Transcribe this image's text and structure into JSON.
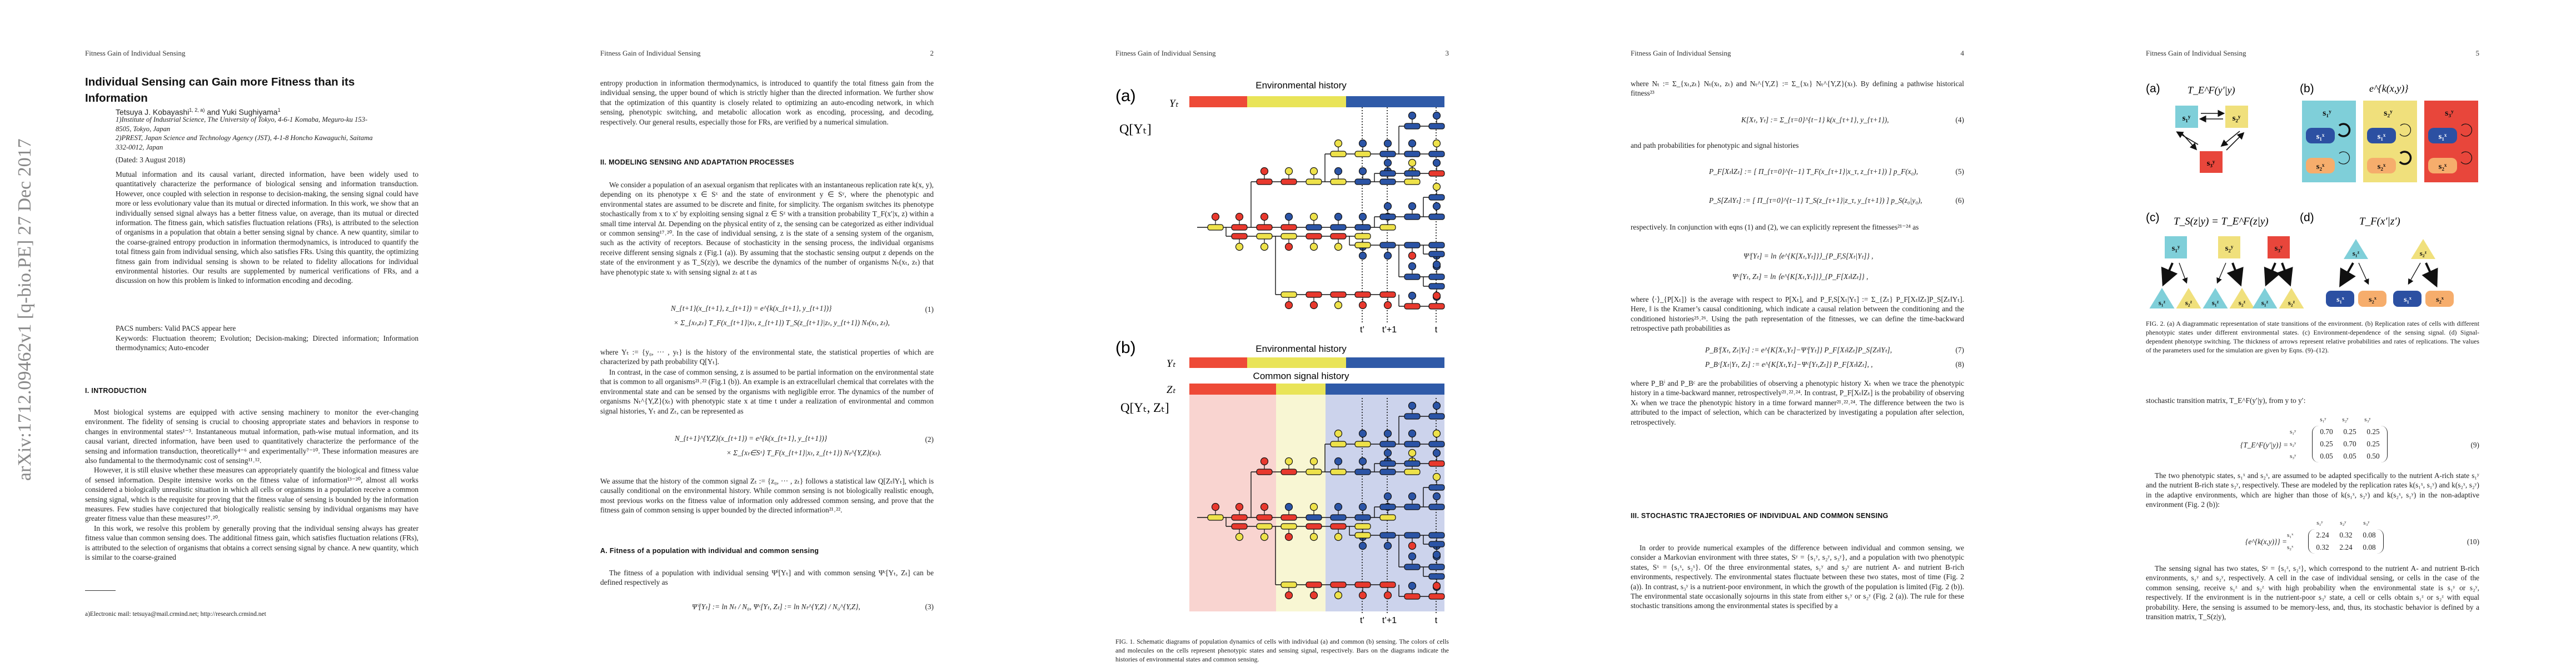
{
  "running_header": "Fitness Gain of Individual Sensing",
  "arxiv_stamp": "arXiv:1712.09462v1  [q-bio.PE]  27 Dec 2017",
  "page1": {
    "title": "Individual Sensing can Gain more Fitness than its Information",
    "author1": "Tetsuya J. Kobayashi",
    "author1_sup": "1, 2, a)",
    "author_and": " and ",
    "author2": "Yuki Sughiyama",
    "author2_sup": "1",
    "affiliations": [
      "1)Institute of Industrial Science, The University of Tokyo, 4-6-1 Komaba, Meguro-ku 153-8505, Tokyo, Japan",
      "2)PREST, Japan Science and Technology Agency (JST), 4-1-8 Honcho Kawaguchi, Saitama 332-0012, Japan"
    ],
    "dated": "(Dated: 3 August 2018)",
    "abstract": "Mutual information and its causal variant, directed information, have been widely used to quantitatively characterize the performance of biological sensing and information transduction. However, once coupled with selection in response to decision-making, the sensing signal could have more or less evolutionary value than its mutual or directed information. In this work, we show that an individually sensed signal always has a better fitness value, on average, than its mutual or directed information. The fitness gain, which satisfies fluctuation relations (FRs), is attributed to the selection of organisms in a population that obtain a better sensing signal by chance. A new quantity, similar to the coarse-grained entropy production in information thermodynamics, is introduced to quantify the total fitness gain from individual sensing, which also satisfies FRs. Using this quantity, the optimizing fitness gain from individual sensing is shown to be related to fidelity allocations for individual environmental histories. Our results are supplemented by numerical verifications of FRs, and a discussion on how this problem is linked to information encoding and decoding.",
    "pacs": "PACS numbers: Valid PACS appear here",
    "keywords": "Keywords: Fluctuation theorem; Evolution; Decision-making; Directed information; Information thermodynamics; Auto-encoder",
    "section1_heading": "I.   INTRODUCTION",
    "paragraphs": [
      "Most biological systems are equipped with active sensing machinery to monitor the ever-changing environment. The fidelity of sensing is crucial to choosing appropriate states and behaviors in response to changes in environmental states¹⁻³. Instantaneous mutual information, path-wise mutual information, and its causal variant, directed information, have been used to quantitatively characterize the performance of the sensing and information transduction, theoretically⁴⁻⁶ and experimentally⁷⁻¹⁰. These information measures are also fundamental to the thermodynamic cost of sensing¹¹˒¹².",
      "However, it is still elusive whether these measures can appropriately quantify the biological and fitness value of sensed information. Despite intensive works on the fitness value of information¹³⁻²⁰, almost all works considered a biologically unrealistic situation in which all cells or organisms in a population receive a common sensing signal, which is the requisite for proving that the fitness value of sensing is bounded by the information measures. Few studies have conjectured that biologically realistic sensing by individual organisms may have greater fitness value than these measures¹⁷˒²⁰.",
      "In this work, we resolve this problem by generally proving that the individual sensing always has greater fitness value than common sensing does. The additional fitness gain, which satisfies fluctuation relations (FRs), is attributed to the selection of organisms that obtains a correct sensing signal by chance. A new quantity, which is similar to the coarse-grained"
    ],
    "footnote": "a)Electronic mail: tetsuya@mail.crmind.net; http://research.crmind.net"
  },
  "page2": {
    "number": "2",
    "p1": "entropy production in information thermodynamics, is introduced to quantify the total fitness gain from the individual sensing, the upper bound of which is strictly higher than the directed information. We further show that the optimization of this quantity is closely related to optimizing an auto-encoding network, in which sensing, phenotypic switching, and metabolic allocation work as encoding, processing, and decoding, respectively. Our general results, especially those for FRs, are verified by a numerical simulation.",
    "section2_heading": "II.   MODELING SENSING AND ADAPTATION PROCESSES",
    "p2": "We consider a population of an asexual organism that replicates with an instantaneous replication rate k(x, y), depending on its phenotype x ∈ Sˣ and the state of environment y ∈ Sʸ, where the phenotypic and environmental states are assumed to be discrete and finite, for simplicity. The organism switches its phenotype stochastically from x to x′ by exploiting sensing signal z ∈ Sᶻ with a transition probability T_F(x′|x, z) within a small time interval Δt. Depending on the physical entity of z, the sensing can be categorized as either individual or common sensing¹⁷˒²⁰. In the case of individual sensing, z is the state of a sensing system of the organism, such as the activity of receptors. Because of stochasticity in the sensing process, the individual organisms receive different sensing signals z (Fig.1 (a)). By assuming that the stochastic sensing output z depends on the state of the environment y as T_S(z|y), we describe the dynamics of the number of organisms Nₜ(xₜ, zₜ) that have phenotypic state xₜ with sensing signal zₜ at t as",
    "eq1_line1": "N_{t+1}(x_{t+1}, z_{t+1}) = e^{k(x_{t+1}, y_{t+1})}",
    "eq1_line2": "× Σ_{xₜ,zₜ} T_F(x_{t+1}|xₜ, z_{t+1}) T_S(z_{t+1}|zₜ, y_{t+1}) Nₜ(xₜ, zₜ),",
    "eq1_number": "(1)",
    "p3": "where Yₜ := {y₀, ··· , yₜ} is the history of the environmental state, the statistical properties of which are characterized by path probability Q[Yₜ].",
    "p4": "In contrast, in the case of common sensing, z is assumed to be partial information on the environmental state that is common to all organisms²¹˒²² (Fig.1 (b)). An example is an extracellularl chemical that correlates with the environmental state and can be sensed by the organisms with negligible error. The dynamics of the number of organisms Nₜ^{Y,Z}(xₜ) with phenotypic state x at time t under a realization of environmental and common signal histories, Yₜ and Zₜ, can be represented as",
    "eq2_line1": "N_{t+1}^{Y,Z}(x_{t+1}) = e^{k(x_{t+1}, y_{t+1})}",
    "eq2_line2": "× Σ_{xₜ∈Sˣ} T_F(x_{t+1}|xₜ, z_{t+1}) Nₜ^{Y,Z}(xₜ).",
    "eq2_number": "(2)",
    "p5": "We assume that the history of the common signal Zₜ := {z₀, ··· , zₜ} follows a statistical law Q[Zₜ‖Yₜ], which is causally conditional on the environmental history. While common sensing is not biologically realistic enough, most previous works on the fitness value of information only addressed common sensing, and prove that the fitness gain of common sensing is upper bounded by the directed information²¹˒²².",
    "subsection_heading": "A.   Fitness of a population with individual and common sensing",
    "p6": "The fitness of a population with individual sensing Ψⁱ[Yₜ] and with common sensing Ψᶜ[Yₜ, Zₜ] can be defined respectively as",
    "eq3": "Ψⁱ[Yₜ] := ln Nₜ / N₀,     Ψᶜ[Yₜ, Zₜ] := ln Nₜ^{Y,Z} / N₀^{Y,Z},",
    "eq3_number": "(3)"
  },
  "page3": {
    "number": "3",
    "fig1": {
      "panel_a": "(a)",
      "panel_b": "(b)",
      "env_history": "Environmental history",
      "common_history": "Common signal history",
      "y_label": "Yₜ",
      "z_label": "Zₜ",
      "q_a": "Q[Yₜ]",
      "q_b": "Q[Yₜ, Zₜ]",
      "t_prime": "t’",
      "t_prime_plus1": "t’+1",
      "t": "t"
    },
    "caption": "FIG. 1. Schematic diagrams of population dynamics of cells with individual (a) and common (b) sensing. The colors of cells and molecules on the cells represent phenotypic states and sensing signal, respectively. Bars on the diagrams indicate the histories of environmental states and common sensing."
  },
  "page4": {
    "number": "4",
    "p1": "where Nₜ := Σ_{xₜ,zₜ} Nₜ(xₜ, zₜ) and Nₜ^{Y,Z} := Σ_{xₜ} Nₜ^{Y,Z}(xₜ). By defining a pathwise historical fitness²³",
    "eq4": "K[Xₜ, Yₜ] := Σ_{τ=0}^{t−1} k(x_{τ+1}, y_{τ+1}),",
    "eq4_number": "(4)",
    "p2": "and path probabilities for phenotypic and signal histories",
    "eq5": "P_F[Xₜ‖Zₜ] := [ Π_{τ=0}^{t−1} T_F(x_{τ+1}|x_τ, z_{τ+1}) ] p_F(x₀),",
    "eq5_number": "(5)",
    "eq6": "P_S[Zₜ‖Yₜ] := [ Π_{τ=0}^{t−1} T_S(z_{τ+1}|z_τ, y_{τ+1}) ] p_S(z₀|y₀),",
    "eq6_number": "(6)",
    "p3": "respectively. In conjunction with eqns (1) and (2), we can explicitly represent the fitnesses²¹⁻²⁴ as",
    "eq_fit_i": "Ψⁱ[Yₜ] = ln ⟨e^{K[Xₜ,Yₜ]}⟩_{P_F,S[Xₜ|Yₜ]} ,",
    "eq_fit_c": "Ψᶜ[Yₜ, Zₜ] = ln ⟨e^{K[Xₜ,Yₜ]}⟩_{P_F[Xₜ‖Zₜ]} ,",
    "p4": "where ⟨·⟩_{P[Xₜ]} is the average with respect to P[Xₜ], and P_F,S[Xₜ|Yₜ] := Σ_{Zₜ} P_F[Xₜ‖Zₜ]P_S[Zₜ‖Yₜ]. Here, ‖ is the Kramer’s causal conditioning, which indicate a causal relation between the conditioning and the conditioned histories²⁵˒²⁶. Using the path representation of the fitnesses, we can define the time-backward retrospective path probabilities as",
    "eq7": "P_Bⁱ[Xₜ, Zₜ|Yₜ] := e^{K[Xₜ,Yₜ]−Ψⁱ[Yₜ]} P_F[Xₜ‖Zₜ]P_S[Zₜ‖Yₜ],",
    "eq7_number": "(7)",
    "eq8": "P_Bᶜ[Xₜ|Yₜ, Zₜ] := e^{K[Xₜ,Yₜ]−Ψᶜ[Yₜ,Zₜ]} P_F[Xₜ‖Zₜ], ,",
    "eq8_number": "(8)",
    "p5": "where P_Bⁱ and P_Bᶜ are the probabilities of observing a phenotypic history Xₜ when we trace the phenotypic history in a time-backward manner, retrospectively²¹˒²²˒²⁴. In contrast, P_F[Xₜ‖Zₜ] is the probability of observing Xₜ when we trace the phenotypic history in a time forward manner²¹˒²²˒²⁴. The difference between the two is attributed to the impact of selection, which can be characterized by investigating a population after selection, retrospectively.",
    "section3_heading": "III.   STOCHASTIC TRAJECTORIES OF INDIVIDUAL AND COMMON SENSING",
    "p6": "In order to provide numerical examples of the difference between individual and common sensing, we consider a Markovian environment with three states, Sʸ = {s₁ʸ, s₂ʸ, s₃ʸ}, and a population with two phenotypic states, Sˣ = {s₁ˣ, s₂ˣ}. Of the three environmental states, s₁ʸ and s₂ʸ are nutrient A- and nutrient B-rich environments, respectively. The environmental states fluctuate between these two states, most of time (Fig. 2 (a)). In contrast, s₃ʸ is a nutrient-poor environment, in which the growth of the population is limited (Fig. 2 (b)). The environmental state occasionally sojourns in this state from either s₁ʸ or s₂ʸ (Fig. 2 (a)). The rule for these stochastic transitions among the environmental states is specified by a"
  },
  "page5": {
    "number": "5",
    "fig2": {
      "panel_a": "(a)",
      "panel_b": "(b)",
      "panel_c": "(c)",
      "panel_d": "(d)",
      "title_a": "T_E^F(y′|y)",
      "title_b": "e^{k(x,y)}",
      "title_c": "T_S(z|y) = T_E^F(z|y)",
      "title_d": "T_F(x′|z′)",
      "s1y": "s₁ʸ",
      "s2y": "s₂ʸ",
      "s3y": "s₃ʸ",
      "s1x": "s₁ˣ",
      "s2x": "s₂ˣ",
      "s1z": "s₁ᶻ",
      "s2z": "s₂ᶻ"
    },
    "caption": "FIG. 2. (a) A diagrammatic representation of state transitions of the environment. (b) Replication rates of cells with different phenotypic states under different environmental states. (c) Environment-dependence of the sensing signal. (d) Signal-dependent phenotype switching. The thickness of arrows represent relative probabilities and rates of replications. The values of the parameters used for the simulation are given by Eqns. (9)–(12).",
    "p1": "stochastic transition matrix, T_E^F(y′|y), from y to y′:",
    "matrix9": {
      "lhs": "{T_E^F(y′|y)} =",
      "col_labels": [
        "s₁ʸ",
        "s₂ʸ",
        "s₃ʸ"
      ],
      "row_labels": [
        "s₁ʸ",
        "s₂ʸ",
        "s₃ʸ"
      ],
      "rows": [
        [
          "0.70",
          "0.25",
          "0.25"
        ],
        [
          "0.25",
          "0.70",
          "0.25"
        ],
        [
          "0.05",
          "0.05",
          "0.50"
        ]
      ],
      "number": "(9)"
    },
    "p2": "The two phenotypic states, s₁ˣ and s₂ˣ, are assumed to be adapted specifically to the nutrient A-rich state s₁ʸ and the nutrient B-rich state s₂ʸ, respectively. These are modeled by the replication rates k(s₁ˣ, s₁ʸ) and k(s₂ˣ, s₂ʸ) in the adaptive environments, which are higher than those of k(s₁ˣ, s₂ʸ) and k(s₂ˣ, s₁ʸ) in the non-adaptive environment (Fig. 2 (b)):",
    "matrix10": {
      "lhs": "{e^{k(x,y)}} =",
      "col_labels": [
        "s₁ʸ",
        "s₂ʸ",
        "s₃ʸ"
      ],
      "row_labels": [
        "s₁ˣ",
        "s₂ˣ"
      ],
      "rows": [
        [
          "2.24",
          "0.32",
          "0.08"
        ],
        [
          "0.32",
          "2.24",
          "0.08"
        ]
      ],
      "number": "(10)"
    },
    "p3": "The sensing signal has two states, Sᶻ = {s₁ᶻ, s₂ᶻ}, which correspond to the nutrient A- and nutrient B-rich environments, s₁ʸ and s₂ʸ, respectively. A cell in the case of individual sensing, or cells in the case of the common sensing, receive s₁ᶻ and s₂ᶻ with high probability when the environmental state is s₁ʸ or s₂ʸ, respectively. If the environment is in the nutrient-poor s₃ʸ state, a cell or cells obtain s₁ᶻ or s₂ᶻ with equal probability. Here, the sensing is assumed to be memory-less, and, thus, its stochastic behavior is defined by a transition matrix, T_S(z|y),"
  },
  "colors": {
    "red": "#e8392e",
    "yellow": "#eee24a",
    "blue": "#2b54a6",
    "bar_red": "#ee4a37",
    "bar_yellow": "#e9e458",
    "bar_blue": "#2f5aa8",
    "shade_red": "#f9d4d0",
    "shade_yellow": "#f8f6d3",
    "shade_blue": "#ccd3ec",
    "env1_cyan": "#7fcfd9",
    "env2_yellow": "#f0e07c",
    "env3_red": "#e8463b",
    "pheno1_blue": "#2c50a2",
    "pheno2_orange": "#f6ad6c",
    "stamp_gray": "#888888"
  }
}
